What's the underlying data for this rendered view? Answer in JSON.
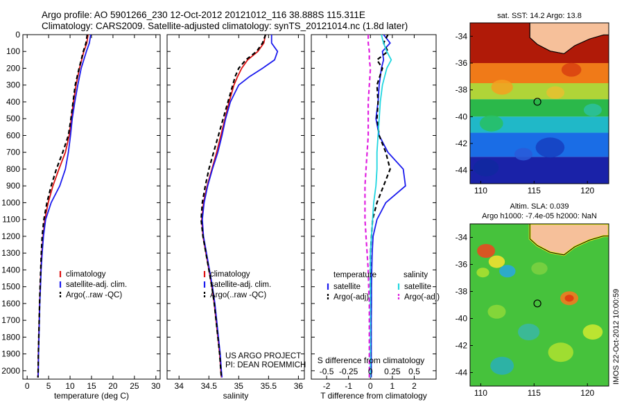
{
  "header": {
    "title_line1": "Argo profile: AO 5901266_230 12-Oct-2012 20121012_116 38.888S 115.311E",
    "title_line2": "Climatology: CARS2009. Satellite-adjusted climatology: synTS_20121014.nc (1.8d later)"
  },
  "colors": {
    "climatology": "#dd1111",
    "satellite": "#1a1aee",
    "argo": "#000000",
    "salinity_satellite": "#1fd6e0",
    "salinity_argo": "#e020e0",
    "land": "#f6c09a"
  },
  "chart_data": [
    {
      "type": "line",
      "panel": "temperature",
      "xlabel": "temperature (deg C)",
      "xlim": [
        -1,
        31
      ],
      "ylim": [
        2050,
        0
      ],
      "x_ticks": [
        0,
        5,
        10,
        15,
        20,
        25,
        30
      ],
      "y_ticks": [
        0,
        100,
        200,
        300,
        400,
        500,
        600,
        700,
        800,
        900,
        1000,
        1100,
        1200,
        1300,
        1400,
        1500,
        1600,
        1700,
        1800,
        1900,
        2000
      ],
      "depth": [
        0,
        50,
        100,
        200,
        300,
        400,
        500,
        600,
        700,
        800,
        900,
        1000,
        1100,
        1200,
        1300,
        1400,
        1500,
        1600,
        1700,
        1800,
        1900,
        2000,
        2040
      ],
      "series": [
        {
          "name": "climatology",
          "color_key": "climatology",
          "dash": false,
          "values": [
            14.2,
            13.9,
            13.2,
            12.2,
            11.4,
            10.8,
            10.3,
            9.8,
            8.9,
            7.4,
            6.0,
            4.9,
            4.1,
            3.7,
            3.4,
            3.2,
            3.05,
            2.9,
            2.8,
            2.7,
            2.6,
            2.55,
            2.5
          ]
        },
        {
          "name": "satellite-adj. clim.",
          "color_key": "satellite",
          "dash": false,
          "values": [
            14.8,
            14.5,
            13.8,
            12.6,
            11.8,
            11.1,
            10.5,
            10.1,
            9.6,
            8.9,
            7.6,
            5.6,
            4.3,
            3.8,
            3.5,
            3.25,
            3.1,
            2.95,
            2.85,
            2.75,
            2.65,
            2.6,
            2.55
          ]
        },
        {
          "name": "Argo(..raw -QC)",
          "color_key": "argo",
          "dash": true,
          "values": [
            14.0,
            13.7,
            13.1,
            12.1,
            11.2,
            10.7,
            10.2,
            9.6,
            8.3,
            6.8,
            5.6,
            4.6,
            3.9,
            3.5,
            3.3,
            3.15,
            3.0,
            2.9,
            2.8,
            2.7,
            2.6,
            2.55,
            2.5
          ]
        }
      ],
      "legend_placement": "bottom-center",
      "notes": []
    },
    {
      "type": "line",
      "panel": "salinity",
      "xlabel": "salinity",
      "xlim": [
        33.8,
        36.1
      ],
      "ylim": [
        2050,
        0
      ],
      "x_ticks": [
        34,
        34.5,
        35,
        35.5,
        36
      ],
      "depth": [
        0,
        50,
        100,
        150,
        200,
        250,
        300,
        400,
        500,
        600,
        700,
        800,
        900,
        1000,
        1100,
        1200,
        1300,
        1400,
        1500,
        1600,
        1700,
        1800,
        1900,
        2000,
        2040
      ],
      "series": [
        {
          "name": "climatology",
          "color_key": "climatology",
          "dash": false,
          "values": [
            35.45,
            35.42,
            35.32,
            35.15,
            35.05,
            34.98,
            34.92,
            34.84,
            34.77,
            34.7,
            34.63,
            34.55,
            34.47,
            34.41,
            34.38,
            34.4,
            34.45,
            34.5,
            34.55,
            34.59,
            34.62,
            34.65,
            34.68,
            34.7,
            34.71
          ]
        },
        {
          "name": "satellite-adj. clim.",
          "color_key": "satellite",
          "dash": false,
          "values": [
            35.55,
            35.55,
            35.65,
            35.6,
            35.4,
            35.18,
            35.0,
            34.86,
            34.78,
            34.72,
            34.65,
            34.56,
            34.48,
            34.42,
            34.39,
            34.41,
            34.46,
            34.51,
            34.56,
            34.6,
            34.63,
            34.66,
            34.69,
            34.71,
            34.72
          ]
        },
        {
          "name": "Argo(..raw -QC)",
          "color_key": "argo",
          "dash": true,
          "values": [
            35.45,
            35.4,
            35.3,
            35.12,
            35.0,
            34.94,
            34.9,
            34.82,
            34.74,
            34.66,
            34.58,
            34.5,
            34.44,
            34.39,
            34.37,
            34.4,
            34.45,
            34.5,
            34.55,
            34.59,
            34.62,
            34.65,
            34.68,
            34.7,
            34.71
          ]
        }
      ],
      "legend_placement": "bottom-center",
      "notes": [
        "US ARGO PROJECT",
        "PI: DEAN ROEMMICH"
      ]
    },
    {
      "type": "line",
      "panel": "difference",
      "xlabel": "T difference from climatology",
      "xlim": [
        -2.7,
        3.0
      ],
      "ylim": [
        2050,
        0
      ],
      "x_ticks": [
        -2,
        -1,
        0,
        1,
        2
      ],
      "top_label": "S difference from climatology",
      "top_ticks": [
        "-0.5",
        "-0.25",
        "0",
        "0.25",
        "0.5"
      ],
      "depth": [
        0,
        50,
        100,
        150,
        200,
        300,
        400,
        500,
        600,
        700,
        800,
        900,
        1000,
        1100,
        1200,
        1300,
        1400,
        1500,
        1600,
        1700,
        1800,
        1900,
        2000,
        2040
      ],
      "series": [
        {
          "name": "temperature satellite",
          "color_key": "satellite",
          "dash": false,
          "values": [
            0.6,
            0.9,
            0.55,
            0.6,
            0.5,
            0.4,
            0.35,
            0.25,
            0.4,
            0.8,
            1.5,
            1.6,
            0.7,
            0.3,
            0.12,
            0.08,
            0.06,
            0.05,
            0.05,
            0.04,
            0.04,
            0.04,
            0.04,
            0.04
          ]
        },
        {
          "name": "temperature Argo(-adj)",
          "color_key": "argo",
          "dash": true,
          "values": [
            0.8,
            0.6,
            0.8,
            0.3,
            0.55,
            0.3,
            0.35,
            0.3,
            0.4,
            0.7,
            0.9,
            0.6,
            0.3,
            0.1,
            0.05,
            0.0,
            0.0,
            0.0,
            0.0,
            0.0,
            0.0,
            0.0,
            0.0,
            0.0
          ]
        },
        {
          "name": "salinity satellite",
          "color_key": "salinity_satellite",
          "dash": false,
          "values": [
            0.5,
            0.6,
            0.75,
            0.95,
            0.75,
            0.55,
            0.45,
            0.4,
            0.35,
            0.3,
            0.3,
            0.25,
            0.15,
            0.1,
            0.05,
            0.0,
            0.0,
            0.0,
            0.0,
            0.0,
            0.0,
            0.0,
            0.0,
            0.0
          ]
        },
        {
          "name": "salinity Argo(-adj)",
          "color_key": "salinity_argo",
          "dash": true,
          "values": [
            -0.1,
            -0.1,
            -0.05,
            -0.05,
            0.0,
            -0.05,
            -0.1,
            -0.1,
            -0.1,
            -0.15,
            -0.2,
            -0.25,
            -0.25,
            -0.25,
            -0.2,
            -0.15,
            -0.1,
            -0.08,
            -0.05,
            -0.05,
            -0.05,
            -0.05,
            -0.05,
            -0.05
          ]
        }
      ],
      "legend_placement": "bottom-center",
      "legend_headers": [
        "temperature",
        "salinity"
      ],
      "notes": []
    },
    {
      "type": "heatmap",
      "panel": "sst_map",
      "title": "sat. SST: 14.2  Argo: 13.8",
      "xlim": [
        109,
        122
      ],
      "ylim": [
        -45,
        -33
      ],
      "x_ticks": [
        110,
        115,
        120
      ],
      "y_ticks": [
        -34,
        -36,
        -38,
        -40,
        -42,
        -44
      ],
      "argo_position": {
        "lon": 115.311,
        "lat": -38.888
      },
      "bands": [
        {
          "lat_from": -33,
          "lat_to": -36,
          "color": "#b01a08"
        },
        {
          "lat_from": -36,
          "lat_to": -37.5,
          "color": "#f07a18"
        },
        {
          "lat_from": -37.5,
          "lat_to": -38.7,
          "color": "#b0d438"
        },
        {
          "lat_from": -38.7,
          "lat_to": -40,
          "color": "#2bb84a"
        },
        {
          "lat_from": -40,
          "lat_to": -41.2,
          "color": "#20b8c8"
        },
        {
          "lat_from": -41.2,
          "lat_to": -43,
          "color": "#1a6de6"
        },
        {
          "lat_from": -43,
          "lat_to": -45,
          "color": "#1a22a8"
        }
      ]
    },
    {
      "type": "heatmap",
      "panel": "sla_map",
      "title_line1": "Altim. SLA: 0.039",
      "title_line2": "Argo h1000: -7.4e-05 h2000: NaN",
      "xlim": [
        109,
        122
      ],
      "ylim": [
        -45,
        -33
      ],
      "x_ticks": [
        110,
        115,
        120
      ],
      "y_ticks": [
        -34,
        -36,
        -38,
        -40,
        -42,
        -44
      ],
      "argo_position": {
        "lon": 115.311,
        "lat": -38.888
      },
      "background_color": "#46c23c"
    }
  ],
  "side_stamp": "IMOS 22-Oct-2012 10:00:59"
}
